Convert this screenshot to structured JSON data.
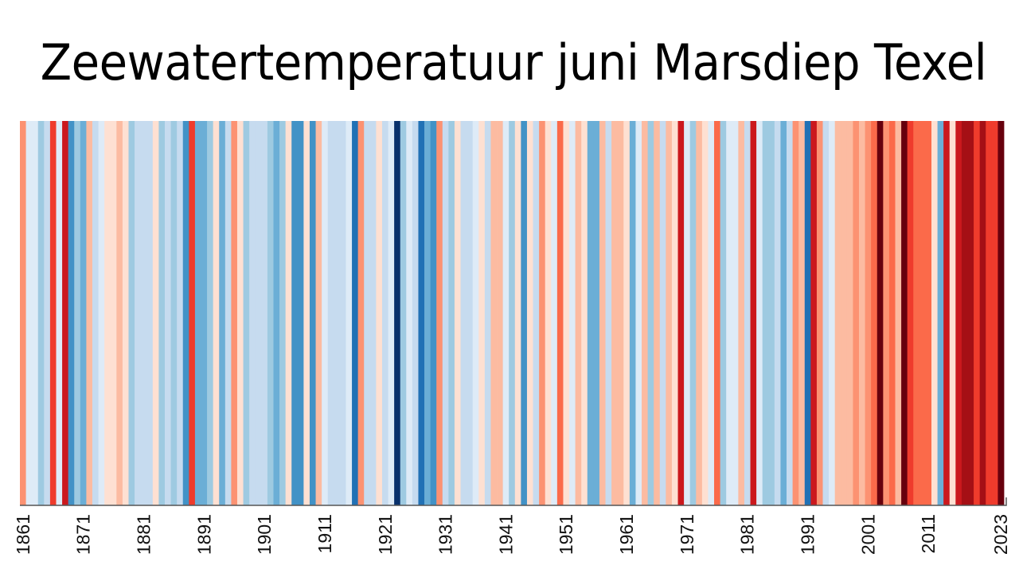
{
  "chart_data": {
    "type": "heatmap",
    "title": "Zeewatertemperatuur juni Marsdiep Texel",
    "xlabel": "",
    "ylabel": "",
    "x_start": 1861,
    "x_end": 2023,
    "xlim": [
      1861,
      2023
    ],
    "tick_labels": [
      "1861",
      "1871",
      "1881",
      "1891",
      "1901",
      "1911",
      "1921",
      "1931",
      "1941",
      "1951",
      "1961",
      "1971",
      "1981",
      "1991",
      "2001",
      "2011",
      "2023"
    ],
    "palette": {
      "-8": "#08306b",
      "-7": "#08519c",
      "-6": "#2171b5",
      "-5": "#4292c6",
      "-4": "#6baed6",
      "-3": "#9ecae1",
      "-2": "#c6dbef",
      "-1": "#deebf7",
      "1": "#fee0d2",
      "2": "#fcbba1",
      "3": "#fc9272",
      "4": "#fb6a4a",
      "5": "#ef3b2c",
      "6": "#cb181d",
      "7": "#a50f15",
      "8": "#67000d"
    },
    "levels": [
      3,
      -1,
      -1,
      -3,
      -2,
      5,
      -1,
      6,
      -5,
      -3,
      -4,
      2,
      -2,
      -1,
      1,
      1,
      2,
      1,
      -3,
      -2,
      -2,
      -2,
      1,
      -3,
      -2,
      -3,
      -2,
      -5,
      5,
      -4,
      -4,
      -3,
      1,
      -4,
      -2,
      3,
      1,
      -3,
      -2,
      -2,
      -2,
      -3,
      -4,
      -3,
      1,
      -5,
      -5,
      1,
      -5,
      2,
      -1,
      -2,
      -2,
      -2,
      -1,
      -6,
      3,
      -2,
      -2,
      1,
      -2,
      -1,
      -8,
      -3,
      -1,
      -2,
      -6,
      -4,
      -5,
      3,
      -2,
      -3,
      1,
      -2,
      -2,
      -1,
      1,
      -2,
      2,
      2,
      -1,
      -3,
      1,
      -5,
      1,
      -2,
      3,
      1,
      -1,
      4,
      1,
      -1,
      2,
      1,
      -4,
      -4,
      2,
      -2,
      2,
      2,
      1,
      -4,
      -1,
      2,
      -3,
      2,
      -2,
      2,
      1,
      6,
      -1,
      -3,
      2,
      1,
      -1,
      4,
      -3,
      -1,
      -1,
      2,
      -2,
      6,
      -1,
      -3,
      -3,
      -2,
      -4,
      -2,
      3,
      2,
      -6,
      6,
      3,
      -2,
      -1,
      2,
      2,
      2,
      3,
      2,
      3,
      4,
      8,
      3,
      4,
      2,
      8,
      5,
      4,
      4,
      4,
      1,
      -4,
      6,
      1,
      6,
      7,
      7,
      5,
      7,
      5,
      5,
      8
    ],
    "axis_color": "#555555",
    "grid": false
  }
}
